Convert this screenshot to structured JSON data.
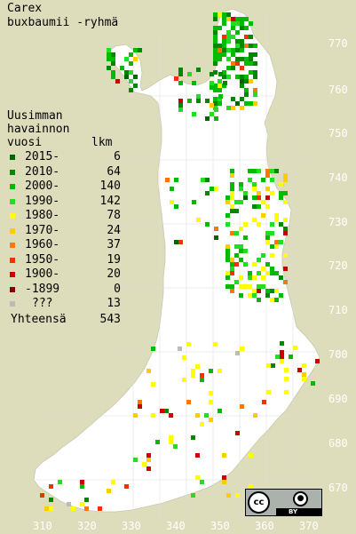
{
  "title": {
    "line1": "Carex",
    "line2": "buxbaumii -ryhmä"
  },
  "legend": {
    "heading_line1": "Uusimman",
    "heading_line2": "havainnon",
    "heading_line3": "vuosi",
    "count_header": "lkm",
    "items": [
      {
        "label": "2015-",
        "count": "6",
        "color": "#006600"
      },
      {
        "label": "2010-",
        "count": "64",
        "color": "#008800"
      },
      {
        "label": "2000-",
        "count": "140",
        "color": "#00bb00"
      },
      {
        "label": "1990-",
        "count": "142",
        "color": "#22dd22"
      },
      {
        "label": "1980-",
        "count": "78",
        "color": "#ffff00"
      },
      {
        "label": "1970-",
        "count": "24",
        "color": "#ffcc00"
      },
      {
        "label": "1960-",
        "count": "37",
        "color": "#ff7700"
      },
      {
        "label": "1950-",
        "count": "19",
        "color": "#ee3300"
      },
      {
        "label": "1900-",
        "count": "20",
        "color": "#cc0000"
      },
      {
        "label": "-1899",
        "count": "0",
        "color": "#880000"
      },
      {
        "label": "???",
        "count": "13",
        "color": "#bbbbbb"
      }
    ],
    "total_label": "Yhteensä",
    "total_count": "543"
  },
  "axes": {
    "y_ticks": [
      "770",
      "760",
      "750",
      "740",
      "730",
      "720",
      "710",
      "700",
      "690",
      "680",
      "670"
    ],
    "x_ticks": [
      "310",
      "320",
      "330",
      "340",
      "350",
      "360",
      "370"
    ]
  },
  "license": {
    "cc_text": "cc",
    "by_icon": "person-icon",
    "by_text": "BY"
  },
  "colors": {
    "background": "#ddddbb",
    "land": "#ffffff",
    "grid": "#d8d8d8"
  }
}
